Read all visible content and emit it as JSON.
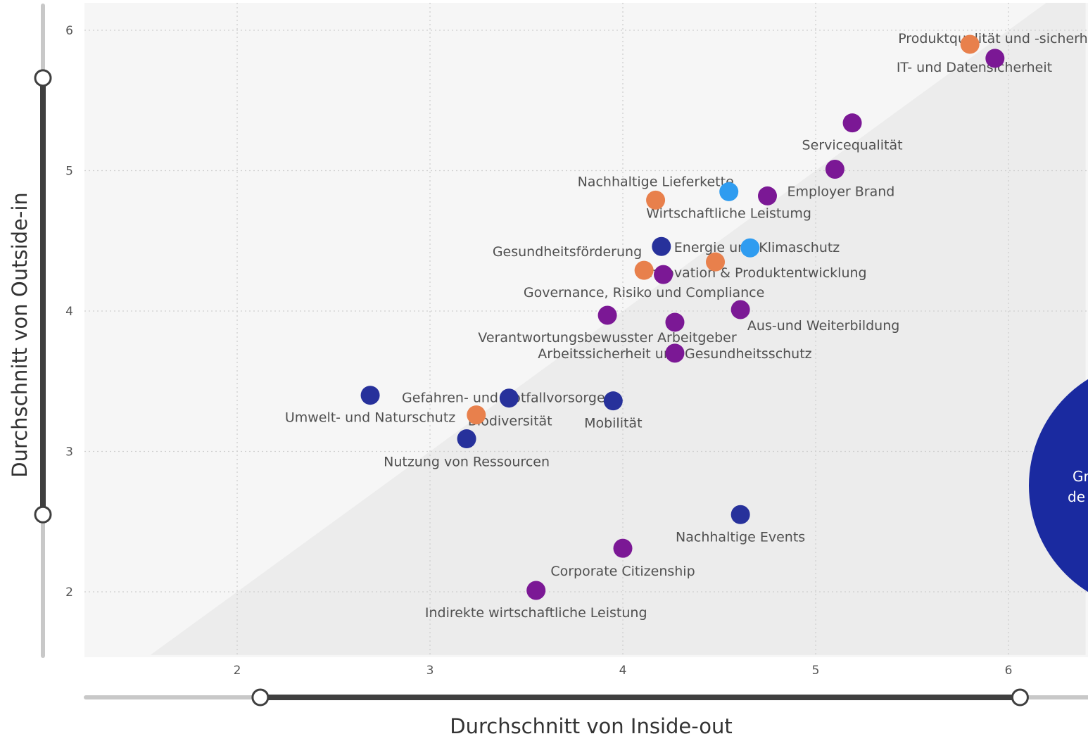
{
  "chart_data": {
    "type": "scatter",
    "xlabel": "Durchschnitt von Inside-out",
    "ylabel": "Durchschnitt von Outside-in",
    "xlim": [
      1.2,
      6.4
    ],
    "ylim": [
      1.55,
      6.2
    ],
    "x_ticks": [
      2,
      3,
      4,
      5,
      6
    ],
    "y_ticks": [
      2,
      3,
      4,
      5,
      6
    ],
    "grid": true,
    "diagonal_shading": true,
    "colors": {
      "purple": "#7b1895",
      "darkblue": "#27319b",
      "orange": "#e8804c",
      "lightblue": "#2f9cf0"
    },
    "points": [
      {
        "label": "Produktqualität und -sicherheit",
        "x": 5.8,
        "y": 5.9,
        "color": "orange"
      },
      {
        "label": "IT- und Datensicherheit",
        "x": 5.93,
        "y": 5.8,
        "color": "purple"
      },
      {
        "label": "Servicequalität",
        "x": 5.19,
        "y": 5.34,
        "color": "purple"
      },
      {
        "label": "",
        "x": 5.1,
        "y": 5.01,
        "color": "purple"
      },
      {
        "label": "Employer Brand",
        "x": 4.75,
        "y": 4.82,
        "color": "purple"
      },
      {
        "label": "Nachhaltige Lieferkette",
        "x": 4.55,
        "y": 4.85,
        "color": "lightblue"
      },
      {
        "label": "Wirtschaftliche Leistumg",
        "x": 4.17,
        "y": 4.79,
        "color": "orange"
      },
      {
        "label": "Energie und Klimaschutz",
        "x": 4.2,
        "y": 4.46,
        "color": "darkblue"
      },
      {
        "label": "",
        "x": 4.66,
        "y": 4.45,
        "color": "lightblue"
      },
      {
        "label": "Gesundheitsförderung",
        "x": 4.11,
        "y": 4.29,
        "color": "orange"
      },
      {
        "label": "Innovation & Produktentwicklung",
        "x": 4.21,
        "y": 4.26,
        "color": "purple"
      },
      {
        "label": "",
        "x": 4.48,
        "y": 4.35,
        "color": "orange"
      },
      {
        "label": "Governance, Risiko und Compliance",
        "x": 3.92,
        "y": 3.97,
        "color": "purple"
      },
      {
        "label": "Verantwortungsbewusster Arbeitgeber",
        "x": 4.27,
        "y": 3.92,
        "color": "purple"
      },
      {
        "label": "Aus-und Weiterbildung",
        "x": 4.61,
        "y": 4.01,
        "color": "purple"
      },
      {
        "label": "Arbeitssicherheit und Gesundheitsschutz",
        "x": 4.27,
        "y": 3.7,
        "color": "purple"
      },
      {
        "label": "Gefahren- und Notfallvorsorge",
        "x": 3.41,
        "y": 3.38,
        "color": "darkblue"
      },
      {
        "label": "Umwelt- und Naturschutz",
        "x": 2.69,
        "y": 3.4,
        "color": "darkblue"
      },
      {
        "label": "Biodiversität",
        "x": 3.24,
        "y": 3.26,
        "color": "orange"
      },
      {
        "label": "Mobilität",
        "x": 3.95,
        "y": 3.36,
        "color": "darkblue"
      },
      {
        "label": "Nutzung von Ressourcen",
        "x": 3.19,
        "y": 3.09,
        "color": "darkblue"
      },
      {
        "label": "Nachhaltige Events",
        "x": 4.61,
        "y": 2.55,
        "color": "darkblue"
      },
      {
        "label": "Corporate Citizenship",
        "x": 4.0,
        "y": 2.31,
        "color": "purple"
      },
      {
        "label": "Indirekte wirtschaftliche Leistung",
        "x": 3.55,
        "y": 2.01,
        "color": "purple"
      }
    ]
  },
  "overlay": {
    "bubble_text_line1": "Gr",
    "bubble_text_line2": "de",
    "bubble_color": "#1a2aa0"
  },
  "sliders": {
    "y_range": [
      2.55,
      5.66
    ],
    "x_range": [
      2.12,
      6.06
    ],
    "track_color": "#c8c8c8",
    "active_color": "#3f3f3f"
  }
}
